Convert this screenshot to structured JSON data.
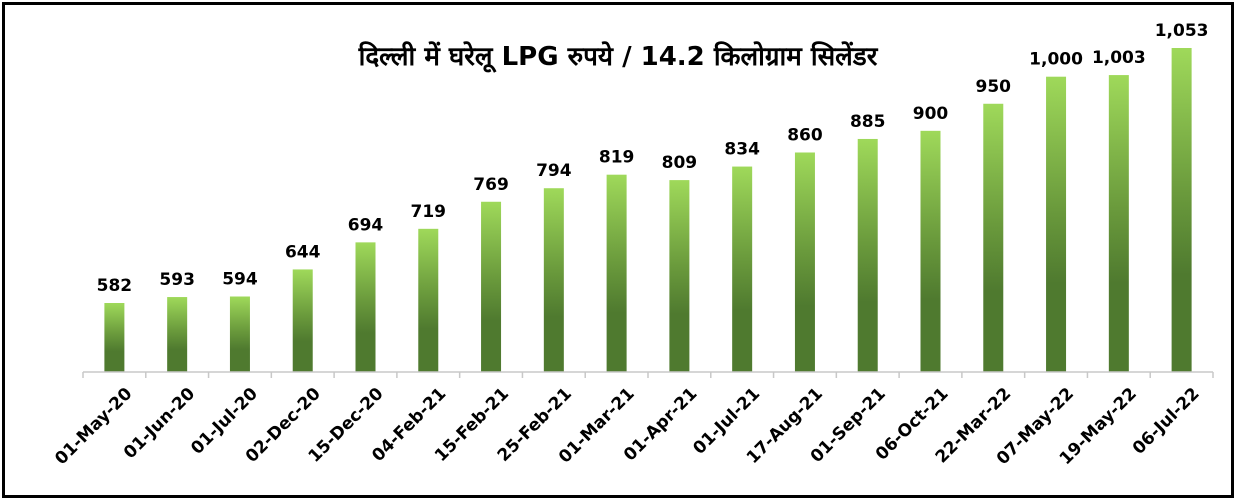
{
  "chart_data": {
    "type": "bar",
    "title": "दिल्ली में घरेलू LPG रुपये / 14.2 किलोग्राम सिलेंडर",
    "categories": [
      "01-May-20",
      "01-Jun-20",
      "01-Jul-20",
      "02-Dec-20",
      "15-Dec-20",
      "04-Feb-21",
      "15-Feb-21",
      "25-Feb-21",
      "01-Mar-21",
      "01-Apr-21",
      "01-Jul-21",
      "17-Aug-21",
      "01-Sep-21",
      "06-Oct-21",
      "22-Mar-22",
      "07-May-22",
      "19-May-22",
      "06-Jul-22"
    ],
    "values": [
      582,
      593,
      594,
      644,
      694,
      719,
      769,
      794,
      819,
      809,
      834,
      860,
      885,
      900,
      950,
      1000,
      1003,
      1053
    ],
    "value_labels": [
      "582",
      "593",
      "594",
      "644",
      "694",
      "719",
      "769",
      "794",
      "819",
      "809",
      "834",
      "860",
      "885",
      "900",
      "950",
      "1,000",
      "1,003",
      "1,053"
    ],
    "xlabel": "",
    "ylabel": "",
    "ylim": [
      400,
      1100
    ],
    "grid": false,
    "legend": "none",
    "colors": {
      "bar_top": "#9fd95a",
      "bar_bottom": "#4f7a2f",
      "axis": "#c8c8c8",
      "frame": "#000000"
    }
  }
}
